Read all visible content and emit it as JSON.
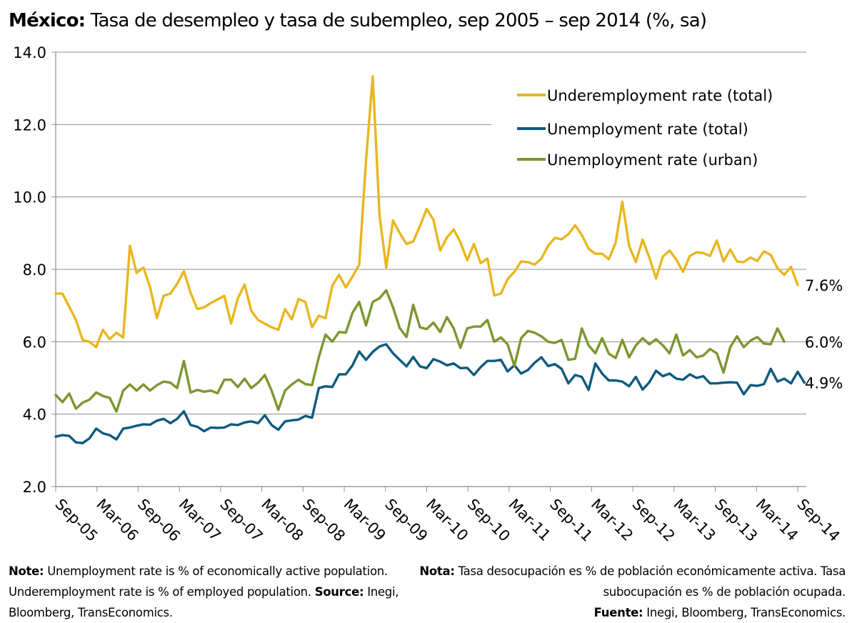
{
  "title": {
    "bold": "México:",
    "rest": "Tasa de desempleo y tasa de subempleo, sep 2005 – sep 2014 (%, sa)"
  },
  "chart_data": {
    "type": "line",
    "ylim": [
      2,
      14
    ],
    "y_ticks": [
      "2.0",
      "4.0",
      "6.0",
      "8.0",
      "10.0",
      "12.0",
      "14.0"
    ],
    "x_tick_labels": [
      "Sep-05",
      "Mar-06",
      "Sep-06",
      "Mar-07",
      "Sep-07",
      "Mar-08",
      "Sep-08",
      "Mar-09",
      "Sep-09",
      "Mar-10",
      "Sep-10",
      "Mar-11",
      "Sep-11",
      "Mar-12",
      "Sep-12",
      "Mar-13",
      "Sep-13",
      "Mar-14",
      "Sep-14"
    ],
    "x_start": "2005-09",
    "x_end": "2014-09",
    "legend": "top-right",
    "grid": "horizontal",
    "series": [
      {
        "name": "Underemployment rate (total)",
        "color": "#E8B71E",
        "end_label": "7.6%",
        "values": [
          7.33,
          7.33,
          6.97,
          6.6,
          6.05,
          6.0,
          5.85,
          6.33,
          6.07,
          6.25,
          6.12,
          8.65,
          7.9,
          8.05,
          7.5,
          6.65,
          7.27,
          7.33,
          7.6,
          7.95,
          7.35,
          6.9,
          6.95,
          7.07,
          7.17,
          7.27,
          6.5,
          7.2,
          7.58,
          6.85,
          6.6,
          6.5,
          6.4,
          6.33,
          6.9,
          6.62,
          7.18,
          7.1,
          6.4,
          6.72,
          6.65,
          7.55,
          7.85,
          7.5,
          7.8,
          8.13,
          11.0,
          13.33,
          9.5,
          8.05,
          9.35,
          9.0,
          8.7,
          8.77,
          9.2,
          9.67,
          9.37,
          8.52,
          8.88,
          9.1,
          8.75,
          8.25,
          8.7,
          8.17,
          8.3,
          7.28,
          7.33,
          7.73,
          7.93,
          8.22,
          8.2,
          8.13,
          8.3,
          8.65,
          8.87,
          8.83,
          8.97,
          9.22,
          8.95,
          8.57,
          8.43,
          8.43,
          8.28,
          8.73,
          9.87,
          8.65,
          8.2,
          8.82,
          8.33,
          7.75,
          8.35,
          8.52,
          8.27,
          7.93,
          8.37,
          8.47,
          8.45,
          8.37,
          8.8,
          8.22,
          8.55,
          8.22,
          8.2,
          8.33,
          8.23,
          8.5,
          8.4,
          8.03,
          7.85,
          8.07,
          7.57
        ]
      },
      {
        "name": "Unemployment rate (total)",
        "color": "#0F5A7F",
        "end_label": "4.9%",
        "values": [
          3.38,
          3.42,
          3.4,
          3.22,
          3.2,
          3.33,
          3.6,
          3.47,
          3.42,
          3.3,
          3.6,
          3.63,
          3.68,
          3.72,
          3.71,
          3.82,
          3.87,
          3.75,
          3.87,
          4.08,
          3.7,
          3.65,
          3.53,
          3.63,
          3.62,
          3.63,
          3.72,
          3.7,
          3.77,
          3.8,
          3.75,
          3.97,
          3.7,
          3.57,
          3.8,
          3.83,
          3.85,
          3.95,
          3.9,
          4.72,
          4.77,
          4.75,
          5.1,
          5.1,
          5.35,
          5.73,
          5.5,
          5.72,
          5.87,
          5.93,
          5.68,
          5.5,
          5.32,
          5.58,
          5.32,
          5.27,
          5.52,
          5.45,
          5.35,
          5.4,
          5.27,
          5.28,
          5.08,
          5.3,
          5.47,
          5.47,
          5.5,
          5.18,
          5.35,
          5.12,
          5.22,
          5.42,
          5.57,
          5.33,
          5.38,
          5.25,
          4.85,
          5.08,
          5.03,
          4.67,
          5.4,
          5.12,
          4.93,
          4.93,
          4.9,
          4.77,
          5.03,
          4.68,
          4.88,
          5.2,
          5.05,
          5.12,
          4.98,
          4.95,
          5.1,
          5.0,
          5.05,
          4.85,
          4.85,
          4.87,
          4.88,
          4.87,
          4.55,
          4.8,
          4.78,
          4.83,
          5.25,
          4.9,
          4.98,
          4.85,
          5.17,
          4.87
        ]
      },
      {
        "name": "Unemployment rate (urban)",
        "color": "#7C962F",
        "end_label": "6.0%",
        "values": [
          4.53,
          4.33,
          4.57,
          4.15,
          4.32,
          4.4,
          4.6,
          4.5,
          4.45,
          4.07,
          4.65,
          4.82,
          4.65,
          4.82,
          4.65,
          4.8,
          4.9,
          4.87,
          4.72,
          5.47,
          4.6,
          4.67,
          4.62,
          4.65,
          4.58,
          4.95,
          4.95,
          4.75,
          4.98,
          4.72,
          4.87,
          5.08,
          4.65,
          4.12,
          4.65,
          4.82,
          4.95,
          4.83,
          4.8,
          5.57,
          6.2,
          6.0,
          6.27,
          6.25,
          6.8,
          7.1,
          6.45,
          7.1,
          7.2,
          7.42,
          6.95,
          6.38,
          6.13,
          7.02,
          6.4,
          6.35,
          6.53,
          6.27,
          6.68,
          6.37,
          5.83,
          6.37,
          6.42,
          6.42,
          6.6,
          6.0,
          6.12,
          5.93,
          5.33,
          6.1,
          6.3,
          6.25,
          6.15,
          6.0,
          5.97,
          6.05,
          5.5,
          5.53,
          6.37,
          5.9,
          5.68,
          6.1,
          5.67,
          5.55,
          6.05,
          5.57,
          5.9,
          6.1,
          5.93,
          6.07,
          5.9,
          5.68,
          6.2,
          5.62,
          5.77,
          5.57,
          5.62,
          5.8,
          5.68,
          5.15,
          5.85,
          6.15,
          5.85,
          6.03,
          6.13,
          5.95,
          5.93,
          6.37,
          6.0
        ]
      }
    ]
  },
  "notes": {
    "left_label": "Note:",
    "left_text": " Unemployment rate is % of economically active population. Underemployment rate is % of employed population. ",
    "left_source_label": "Source:",
    "left_source_text": " Inegi, Bloomberg, TransEconomics.",
    "right_label": "Nota:",
    "right_text": " Tasa desocupación es % de población económicamente activa. Tasa subocupación es % de población ocupada.",
    "right_source_label": "Fuente:",
    "right_source_text": " Inegi, Bloomberg, TransEconomics."
  }
}
